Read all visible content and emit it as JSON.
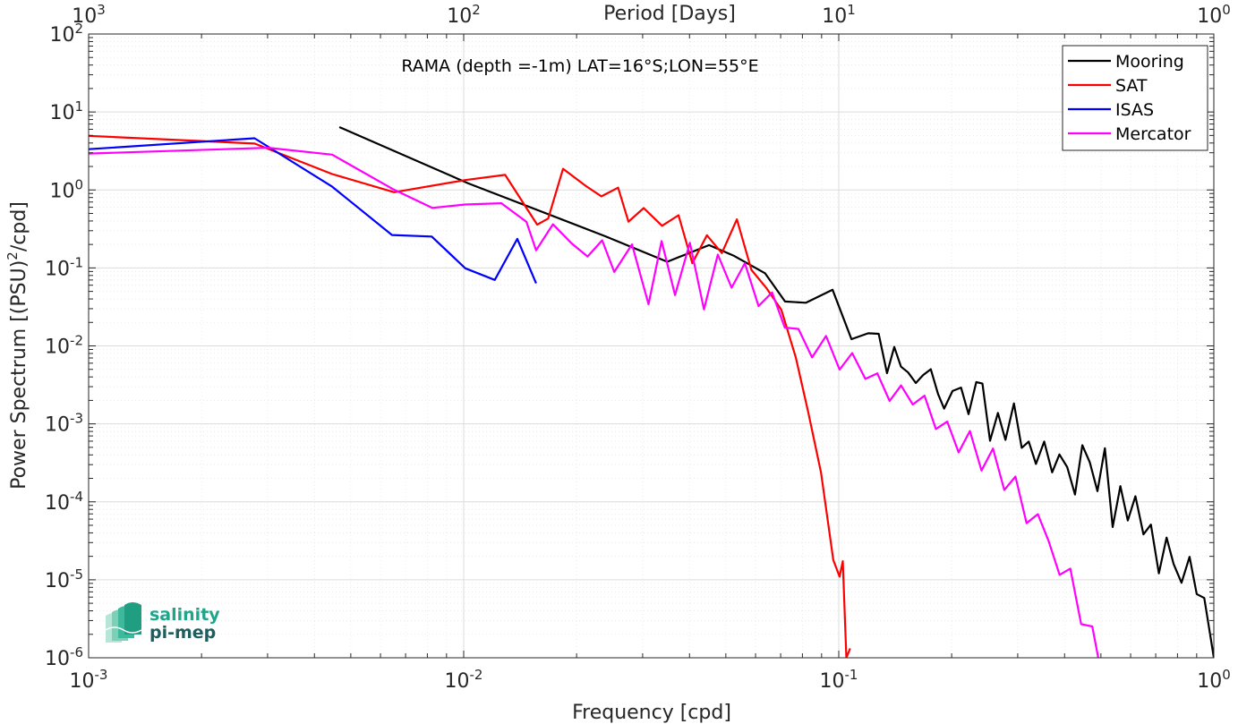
{
  "logo": {
    "line1": "salinity",
    "line2": "pi-mep"
  },
  "chart_data": {
    "type": "line",
    "title": "RAMA (depth =-1m) LAT=16°S;LON=55°E",
    "xlabel": "Frequency [cpd]",
    "ylabel": "Power Spectrum [(PSU)²/cpd]",
    "top_xlabel": "Period [Days]",
    "x_scale": "log",
    "y_scale": "log",
    "xlim": [
      0.001,
      1
    ],
    "ylim": [
      1e-06,
      100
    ],
    "grid": true,
    "legend_position": "top-right",
    "x_ticks": [
      {
        "value": 0.001,
        "base": "10",
        "exp": "-3"
      },
      {
        "value": 0.01,
        "base": "10",
        "exp": "-2"
      },
      {
        "value": 0.1,
        "base": "10",
        "exp": "-1"
      },
      {
        "value": 1,
        "base": "10",
        "exp": "0"
      }
    ],
    "top_ticks": [
      {
        "value": 0.001,
        "base": "10",
        "exp": "3"
      },
      {
        "value": 0.01,
        "base": "10",
        "exp": "2"
      },
      {
        "value": 0.1,
        "base": "10",
        "exp": "1"
      },
      {
        "value": 1,
        "base": "10",
        "exp": "0"
      }
    ],
    "y_ticks": [
      {
        "value": 100,
        "base": "10",
        "exp": "2"
      },
      {
        "value": 10,
        "base": "10",
        "exp": "1"
      },
      {
        "value": 1,
        "base": "10",
        "exp": "0"
      },
      {
        "value": 0.1,
        "base": "10",
        "exp": "-1"
      },
      {
        "value": 0.01,
        "base": "10",
        "exp": "-2"
      },
      {
        "value": 0.001,
        "base": "10",
        "exp": "-3"
      },
      {
        "value": 0.0001,
        "base": "10",
        "exp": "-4"
      },
      {
        "value": 1e-05,
        "base": "10",
        "exp": "-5"
      },
      {
        "value": 1e-06,
        "base": "10",
        "exp": "-6"
      }
    ],
    "series": [
      {
        "name": "Mooring",
        "color": "#000000",
        "x": [
          0.00466,
          0.0103,
          0.0239,
          0.0349,
          0.0451,
          0.0524,
          0.0636,
          0.0719,
          0.0818,
          0.0963,
          0.1081,
          0.1198,
          0.1278,
          0.1345,
          0.1406,
          0.1465,
          0.1531,
          0.1605,
          0.1678,
          0.1759,
          0.1839,
          0.1909,
          0.2011,
          0.2118,
          0.2218,
          0.2326,
          0.2416,
          0.2531,
          0.2656,
          0.2782,
          0.2931,
          0.3075,
          0.3209,
          0.3356,
          0.3529,
          0.3707,
          0.3876,
          0.4064,
          0.4265,
          0.446,
          0.467,
          0.4896,
          0.5124,
          0.5374,
          0.5635,
          0.5896,
          0.6179,
          0.6491,
          0.6795,
          0.7135,
          0.7482,
          0.7815,
          0.8202,
          0.8618,
          0.9004,
          0.9431,
          0.9803,
          1.0
        ],
        "y": [
          6.41,
          1.21,
          0.254,
          0.12,
          0.196,
          0.144,
          0.0855,
          0.0371,
          0.0357,
          0.0525,
          0.0122,
          0.0145,
          0.0143,
          0.00447,
          0.0097,
          0.00542,
          0.00456,
          0.00334,
          0.00423,
          0.00502,
          0.00242,
          0.00157,
          0.00264,
          0.00292,
          0.00133,
          0.00343,
          0.00329,
          0.000608,
          0.00138,
          0.000623,
          0.00183,
          0.000493,
          0.000593,
          0.000306,
          0.000593,
          0.000239,
          0.000405,
          0.000279,
          0.000124,
          0.000532,
          0.000322,
          0.000137,
          0.000487,
          4.75e-05,
          0.000159,
          5.76e-05,
          0.000118,
          3.83e-05,
          5.11e-05,
          1.21e-05,
          3.48e-05,
          1.59e-05,
          9.15e-06,
          1.97e-05,
          6.56e-06,
          5.85e-06,
          1.82e-06,
          1e-06
        ]
      },
      {
        "name": "SAT",
        "color": "#ff0000",
        "x": [
          0.001,
          0.00277,
          0.00446,
          0.00653,
          0.0101,
          0.0129,
          0.0157,
          0.0168,
          0.0184,
          0.0212,
          0.0233,
          0.0258,
          0.0275,
          0.0302,
          0.0338,
          0.0374,
          0.0407,
          0.0445,
          0.0488,
          0.0535,
          0.0585,
          0.0641,
          0.0703,
          0.0768,
          0.0829,
          0.0897,
          0.0967,
          0.1005,
          0.1025,
          0.1048,
          0.1072
        ],
        "y": [
          4.94,
          3.94,
          1.6,
          0.935,
          1.34,
          1.56,
          0.359,
          0.43,
          1.87,
          1.12,
          0.828,
          1.07,
          0.392,
          0.585,
          0.347,
          0.474,
          0.115,
          0.262,
          0.155,
          0.42,
          0.0945,
          0.0553,
          0.0289,
          0.00712,
          0.00141,
          0.000237,
          1.79e-05,
          1.1e-05,
          1.73e-05,
          1e-06,
          1.32e-06
        ]
      },
      {
        "name": "ISAS",
        "color": "#0000ff",
        "x": [
          0.001,
          0.00277,
          0.00446,
          0.00644,
          0.00822,
          0.0101,
          0.0121,
          0.0139,
          0.0156
        ],
        "y": [
          3.33,
          4.6,
          1.1,
          0.264,
          0.253,
          0.0988,
          0.0701,
          0.236,
          0.0635
        ]
      },
      {
        "name": "Mercator",
        "color": "#ff00ff",
        "x": [
          0.001,
          0.00301,
          0.00446,
          0.00646,
          0.00824,
          0.0101,
          0.0126,
          0.0147,
          0.0156,
          0.0173,
          0.0194,
          0.0214,
          0.0234,
          0.0252,
          0.0281,
          0.0311,
          0.0337,
          0.0366,
          0.0401,
          0.0437,
          0.0476,
          0.0518,
          0.0562,
          0.0611,
          0.0664,
          0.0718,
          0.0781,
          0.0849,
          0.0925,
          0.1005,
          0.1086,
          0.1177,
          0.1267,
          0.1366,
          0.1466,
          0.1575,
          0.1693,
          0.1815,
          0.1946,
          0.2087,
          0.2237,
          0.2402,
          0.2578,
          0.2763,
          0.2959,
          0.3168,
          0.3395,
          0.3628,
          0.388,
          0.4144,
          0.443,
          0.4742,
          0.492
        ],
        "y": [
          2.93,
          3.48,
          2.84,
          1.03,
          0.588,
          0.65,
          0.675,
          0.39,
          0.168,
          0.363,
          0.206,
          0.14,
          0.226,
          0.0887,
          0.2,
          0.0343,
          0.221,
          0.0449,
          0.21,
          0.0294,
          0.148,
          0.0557,
          0.115,
          0.0324,
          0.0484,
          0.0172,
          0.0165,
          0.00712,
          0.0134,
          0.00497,
          0.00809,
          0.00377,
          0.00444,
          0.00197,
          0.00311,
          0.00177,
          0.0023,
          0.000859,
          0.00107,
          0.000431,
          0.00081,
          0.000252,
          0.000483,
          0.000142,
          0.000211,
          5.32e-05,
          6.95e-05,
          3.13e-05,
          1.16e-05,
          1.39e-05,
          2.7e-06,
          2.52e-06,
          1e-06
        ]
      }
    ]
  }
}
